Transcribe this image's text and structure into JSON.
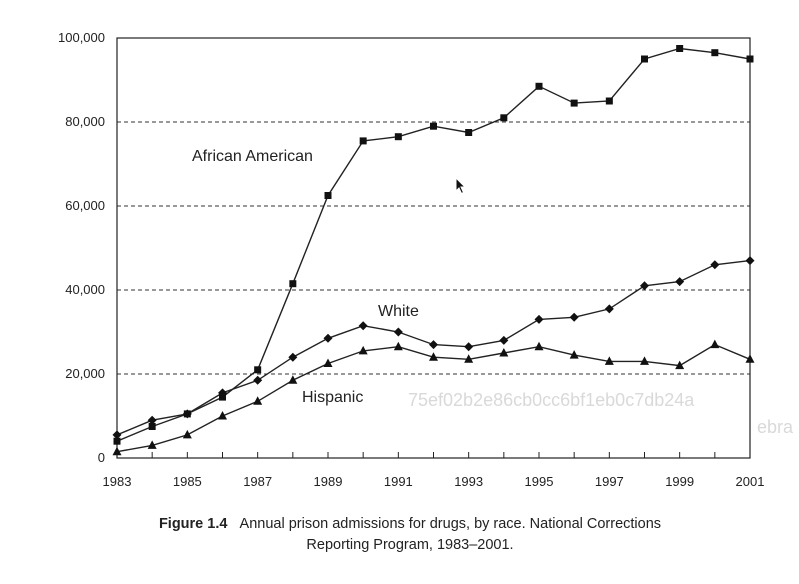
{
  "chart_data": {
    "type": "line",
    "x": [
      1983,
      1984,
      1985,
      1986,
      1987,
      1988,
      1989,
      1990,
      1991,
      1992,
      1993,
      1994,
      1995,
      1996,
      1997,
      1998,
      1999,
      2000,
      2001
    ],
    "x_ticks": [
      "1983",
      "1985",
      "1987",
      "1989",
      "1991",
      "1993",
      "1995",
      "1997",
      "1999",
      "2001"
    ],
    "y_ticks": [
      "0",
      "20,000",
      "40,000",
      "60,000",
      "80,000",
      "100,000"
    ],
    "ylim": [
      0,
      100000
    ],
    "xlim": [
      1983,
      2001
    ],
    "grid": "horizontal dashed",
    "series": [
      {
        "name": "African American",
        "marker": "square",
        "values": [
          4000,
          7500,
          10500,
          14500,
          21000,
          41500,
          62500,
          75500,
          76500,
          79000,
          77500,
          81000,
          88500,
          84500,
          85000,
          95000,
          97500,
          96500,
          95000
        ]
      },
      {
        "name": "White",
        "marker": "diamond",
        "values": [
          5500,
          9000,
          10500,
          15500,
          18500,
          24000,
          28500,
          31500,
          30000,
          27000,
          26500,
          28000,
          33000,
          33500,
          35500,
          41000,
          42000,
          46000,
          47000
        ]
      },
      {
        "name": "Hispanic",
        "marker": "triangle",
        "values": [
          1500,
          3000,
          5500,
          10000,
          13500,
          18500,
          22500,
          25500,
          26500,
          24000,
          23500,
          25000,
          26500,
          24500,
          23000,
          23000,
          22000,
          27000,
          23500
        ]
      }
    ]
  },
  "caption": {
    "figure_label": "Figure 1.4",
    "line1": "Annual prison admissions for drugs, by race. National Corrections",
    "line2": "Reporting Program, 1983–2001."
  },
  "watermark": {
    "line1": "75ef02b2e86cb0cc6bf1eb0c7db24a",
    "line2": "ebra"
  },
  "icons": {
    "cursor": "mouse-pointer-icon"
  }
}
